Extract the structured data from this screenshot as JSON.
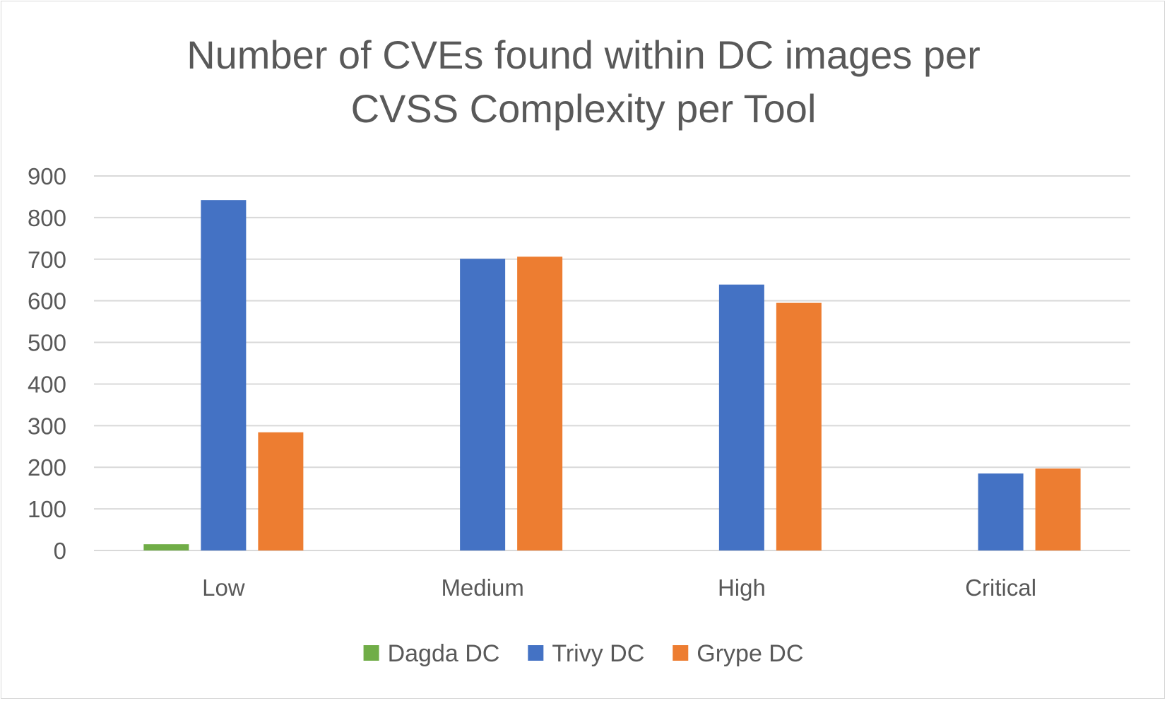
{
  "chart_data": {
    "type": "bar",
    "title": "Number of CVEs found within DC images per\nCVSS Complexity per Tool",
    "categories": [
      "Low",
      "Medium",
      "High",
      "Critical"
    ],
    "series": [
      {
        "name": "Dagda DC",
        "color": "#70ad47",
        "values": [
          15,
          0,
          0,
          0
        ]
      },
      {
        "name": "Trivy DC",
        "color": "#4472c4",
        "values": [
          842,
          701,
          639,
          185
        ]
      },
      {
        "name": "Grype DC",
        "color": "#ed7d31",
        "values": [
          284,
          706,
          595,
          197
        ]
      }
    ],
    "ylim": [
      0,
      900
    ],
    "yticks": [
      "0",
      "100",
      "200",
      "300",
      "400",
      "500",
      "600",
      "700",
      "800",
      "900"
    ],
    "grid": true,
    "legend_position": "bottom",
    "gridline_color": "#d9d9d9",
    "text_color": "#595959"
  }
}
